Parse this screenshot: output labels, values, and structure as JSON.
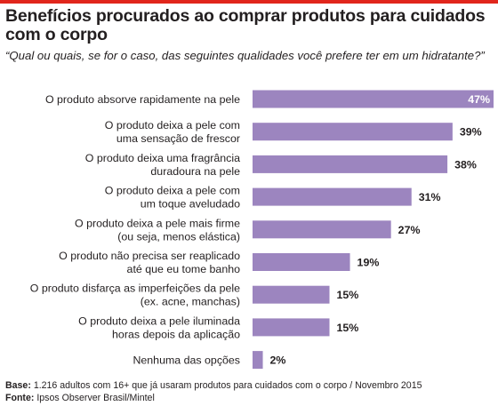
{
  "header": {
    "title": "Benefícios procurados ao comprar produtos para cuidados com o corpo",
    "subtitle": "“Qual ou quais, se for o caso, das seguintes qualidades você prefere ter em um hidratante?”"
  },
  "footer": {
    "base_label": "Base:",
    "base_text": "1.216 adultos com 16+ que já usaram produtos para cuidados com o corpo / Novembro 2015",
    "source_label": "Fonte:",
    "source_text": "Ipsos Observer Brasil/Mintel"
  },
  "chart_data": {
    "type": "bar",
    "orientation": "horizontal",
    "bar_color": "#9c85bf",
    "accent_color": "#e1261c",
    "value_suffix": "%",
    "xlim": [
      0,
      47
    ],
    "categories": [
      [
        "O produto absorve rapidamente na pele"
      ],
      [
        "O produto deixa a pele com",
        "uma sensação de frescor"
      ],
      [
        "O produto deixa uma fragrância",
        "duradoura na pele"
      ],
      [
        "O produto deixa a pele com",
        "um toque aveludado"
      ],
      [
        "O produto deixa a pele mais firme",
        "(ou seja, menos elástica)"
      ],
      [
        "O produto não precisa ser reaplicado",
        "até que eu tome banho"
      ],
      [
        "O produto disfarça as imperfeições da pele",
        "(ex. acne, manchas)"
      ],
      [
        "O produto deixa a pele iluminada",
        "horas depois da aplicação"
      ],
      [
        "Nenhuma das opções"
      ]
    ],
    "values": [
      47,
      39,
      38,
      31,
      27,
      19,
      15,
      15,
      2
    ]
  }
}
